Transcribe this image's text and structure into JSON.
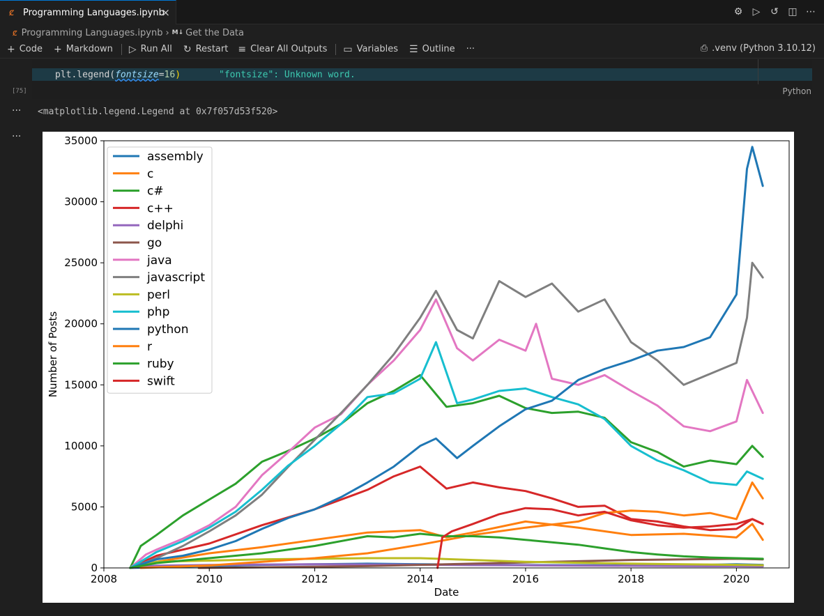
{
  "tab": {
    "title": "Programming Languages.ipynb",
    "close_icon": "×"
  },
  "breadcrumb": {
    "file": "Programming Languages.ipynb",
    "sep": "›",
    "md_badge": "M↓",
    "section": "Get the Data"
  },
  "toolbar": {
    "code": "Code",
    "markdown": "Markdown",
    "run_all": "Run All",
    "restart": "Restart",
    "clear_outputs": "Clear All Outputs",
    "variables": "Variables",
    "outline": "Outline",
    "more": "···",
    "kernel": ".venv (Python 3.10.12)"
  },
  "cell": {
    "code_prefix": "plt.legend(",
    "code_param": "fontsize",
    "code_eq": "=",
    "code_value": "16",
    "code_close": ")",
    "hint": "\"fontsize\": Unknown word.",
    "exec_count": "[75]",
    "language": "Python"
  },
  "output": {
    "text": "<matplotlib.legend.Legend at 0x7f057d53f520>",
    "more": "···"
  },
  "chart_data": {
    "type": "line",
    "xlabel": "Date",
    "ylabel": "Number of Posts",
    "xlim": [
      2008.0,
      2021.0
    ],
    "ylim": [
      0,
      35000
    ],
    "xticks": [
      2008,
      2010,
      2012,
      2014,
      2016,
      2018,
      2020
    ],
    "yticks": [
      0,
      5000,
      10000,
      15000,
      20000,
      25000,
      30000,
      35000
    ],
    "legend_location": "upper left",
    "series": [
      {
        "name": "assembly",
        "color": "#1f77b4",
        "x": [
          2008.5,
          2009,
          2010,
          2011,
          2012,
          2013,
          2014,
          2015,
          2016,
          2017,
          2018,
          2019,
          2020,
          2020.5
        ],
        "y": [
          0,
          60,
          150,
          250,
          300,
          350,
          300,
          260,
          230,
          220,
          200,
          220,
          300,
          250
        ]
      },
      {
        "name": "c",
        "color": "#ff7f0e",
        "x": [
          2008.5,
          2009,
          2010,
          2011,
          2012,
          2013,
          2014,
          2014.5,
          2015,
          2016,
          2017,
          2018,
          2019,
          2020,
          2020.3,
          2020.5
        ],
        "y": [
          0,
          500,
          1200,
          1700,
          2300,
          2900,
          3100,
          2500,
          2900,
          3800,
          3300,
          2700,
          2800,
          2500,
          3600,
          2300
        ]
      },
      {
        "name": "c#",
        "color": "#2ca02c",
        "x": [
          2008.5,
          2008.7,
          2009,
          2009.5,
          2010,
          2010.5,
          2011,
          2011.5,
          2012,
          2012.5,
          2013,
          2013.5,
          2014,
          2014.5,
          2015,
          2015.5,
          2016,
          2016.5,
          2017,
          2017.5,
          2018,
          2018.5,
          2019,
          2019.5,
          2020,
          2020.3,
          2020.5
        ],
        "y": [
          0,
          1800,
          2700,
          4300,
          5600,
          6900,
          8700,
          9600,
          10600,
          11800,
          13500,
          14500,
          15800,
          13200,
          13500,
          14100,
          13100,
          12700,
          12800,
          12300,
          10300,
          9500,
          8300,
          8800,
          8500,
          10000,
          9100
        ]
      },
      {
        "name": "c++",
        "color": "#d62728",
        "x": [
          2008.5,
          2009,
          2010,
          2011,
          2012,
          2013,
          2013.5,
          2014,
          2014.5,
          2015,
          2015.5,
          2016,
          2016.5,
          2017,
          2017.5,
          2018,
          2018.5,
          2019,
          2019.5,
          2020,
          2020.3,
          2020.5
        ],
        "y": [
          0,
          1000,
          2000,
          3500,
          4800,
          6400,
          7500,
          8300,
          6500,
          7000,
          6600,
          6300,
          5700,
          5000,
          5100,
          4000,
          3800,
          3400,
          3100,
          3200,
          4000,
          3600
        ]
      },
      {
        "name": "delphi",
        "color": "#9467bd",
        "x": [
          2008.5,
          2009,
          2010,
          2011,
          2012,
          2013,
          2014,
          2015,
          2016,
          2017,
          2018,
          2019,
          2020,
          2020.5
        ],
        "y": [
          0,
          180,
          240,
          280,
          300,
          280,
          260,
          230,
          210,
          190,
          170,
          150,
          140,
          130
        ]
      },
      {
        "name": "go",
        "color": "#8c564b",
        "x": [
          2009.8,
          2011,
          2012,
          2013,
          2014,
          2015,
          2016,
          2017,
          2018,
          2019,
          2020,
          2020.5
        ],
        "y": [
          0,
          50,
          100,
          150,
          250,
          350,
          450,
          550,
          650,
          700,
          750,
          700
        ]
      },
      {
        "name": "java",
        "color": "#e377c2",
        "x": [
          2008.5,
          2008.8,
          2009,
          2009.5,
          2010,
          2010.5,
          2011,
          2011.5,
          2012,
          2012.5,
          2013,
          2013.5,
          2014,
          2014.3,
          2014.7,
          2015,
          2015.5,
          2016,
          2016.2,
          2016.5,
          2017,
          2017.5,
          2018,
          2018.5,
          2019,
          2019.5,
          2020,
          2020.2,
          2020.5
        ],
        "y": [
          0,
          1100,
          1500,
          2400,
          3500,
          5000,
          7600,
          9500,
          11500,
          12600,
          15000,
          17000,
          19500,
          22000,
          18000,
          17000,
          18700,
          17800,
          20000,
          15500,
          15000,
          15800,
          14500,
          13300,
          11600,
          11200,
          12000,
          15400,
          12700
        ]
      },
      {
        "name": "javascript",
        "color": "#7f7f7f",
        "x": [
          2008.5,
          2009,
          2009.5,
          2010,
          2010.5,
          2011,
          2011.5,
          2012,
          2012.5,
          2013,
          2013.5,
          2014,
          2014.3,
          2014.7,
          2015,
          2015.5,
          2016,
          2016.5,
          2017,
          2017.5,
          2018,
          2018.5,
          2019,
          2019.5,
          2020,
          2020.2,
          2020.3,
          2020.5
        ],
        "y": [
          0,
          800,
          1800,
          3000,
          4300,
          6000,
          8300,
          10500,
          12700,
          15000,
          17500,
          20500,
          22700,
          19500,
          18800,
          23500,
          22200,
          23300,
          21000,
          22000,
          18500,
          17000,
          15000,
          15900,
          16800,
          20500,
          25000,
          23800
        ]
      },
      {
        "name": "perl",
        "color": "#bcbd22",
        "x": [
          2008.5,
          2009,
          2010,
          2011,
          2012,
          2013,
          2014,
          2015,
          2016,
          2017,
          2018,
          2019,
          2020,
          2020.5
        ],
        "y": [
          0,
          500,
          600,
          700,
          750,
          800,
          800,
          650,
          500,
          420,
          350,
          300,
          250,
          220
        ]
      },
      {
        "name": "php",
        "color": "#17becf",
        "x": [
          2008.5,
          2009,
          2009.5,
          2010,
          2010.5,
          2011,
          2011.5,
          2012,
          2012.5,
          2013,
          2013.5,
          2014,
          2014.3,
          2014.7,
          2015,
          2015.5,
          2016,
          2016.5,
          2017,
          2017.5,
          2018,
          2018.5,
          2019,
          2019.5,
          2020,
          2020.2,
          2020.5
        ],
        "y": [
          0,
          1300,
          2200,
          3300,
          4600,
          6400,
          8400,
          10000,
          11800,
          14000,
          14300,
          15500,
          18500,
          13500,
          13800,
          14500,
          14700,
          14000,
          13400,
          12200,
          10000,
          8800,
          8000,
          7000,
          6800,
          7900,
          7300
        ]
      },
      {
        "name": "python",
        "color": "#1f77b4",
        "x": [
          2008.5,
          2009,
          2009.5,
          2010,
          2010.5,
          2011,
          2011.5,
          2012,
          2012.5,
          2013,
          2013.5,
          2014,
          2014.3,
          2014.7,
          2015,
          2015.5,
          2016,
          2016.5,
          2017,
          2017.5,
          2018,
          2018.5,
          2019,
          2019.5,
          2020,
          2020.2,
          2020.3,
          2020.5
        ],
        "y": [
          0,
          700,
          1000,
          1500,
          2200,
          3200,
          4100,
          4800,
          5800,
          7000,
          8300,
          10000,
          10600,
          9000,
          10000,
          11600,
          13000,
          13700,
          15400,
          16300,
          17000,
          17800,
          18100,
          18900,
          22400,
          32700,
          34500,
          31300
        ]
      },
      {
        "name": "r",
        "color": "#ff7f0e",
        "x": [
          2008.7,
          2009,
          2010,
          2011,
          2012,
          2013,
          2014,
          2015,
          2016,
          2017,
          2017.5,
          2018,
          2018.5,
          2019,
          2019.5,
          2020,
          2020.3,
          2020.5
        ],
        "y": [
          0,
          50,
          200,
          500,
          800,
          1200,
          1900,
          2700,
          3300,
          3800,
          4500,
          4700,
          4600,
          4300,
          4500,
          4000,
          7000,
          5700
        ]
      },
      {
        "name": "ruby",
        "color": "#2ca02c",
        "x": [
          2008.5,
          2009,
          2010,
          2011,
          2012,
          2013,
          2013.5,
          2014,
          2014.5,
          2015,
          2015.5,
          2016,
          2016.5,
          2017,
          2017.5,
          2018,
          2018.5,
          2019,
          2019.5,
          2020,
          2020.5
        ],
        "y": [
          0,
          400,
          800,
          1200,
          1800,
          2600,
          2500,
          2800,
          2600,
          2600,
          2500,
          2300,
          2100,
          1900,
          1600,
          1300,
          1100,
          950,
          850,
          800,
          750
        ]
      },
      {
        "name": "swift",
        "color": "#d62728",
        "x": [
          2014.33,
          2014.42,
          2014.6,
          2015,
          2015.5,
          2016,
          2016.5,
          2017,
          2017.5,
          2018,
          2018.5,
          2019,
          2019.5,
          2020,
          2020.3,
          2020.5
        ],
        "y": [
          0,
          2500,
          3000,
          3600,
          4400,
          4900,
          4800,
          4300,
          4600,
          3900,
          3500,
          3300,
          3400,
          3600,
          4000,
          3600
        ]
      }
    ]
  }
}
